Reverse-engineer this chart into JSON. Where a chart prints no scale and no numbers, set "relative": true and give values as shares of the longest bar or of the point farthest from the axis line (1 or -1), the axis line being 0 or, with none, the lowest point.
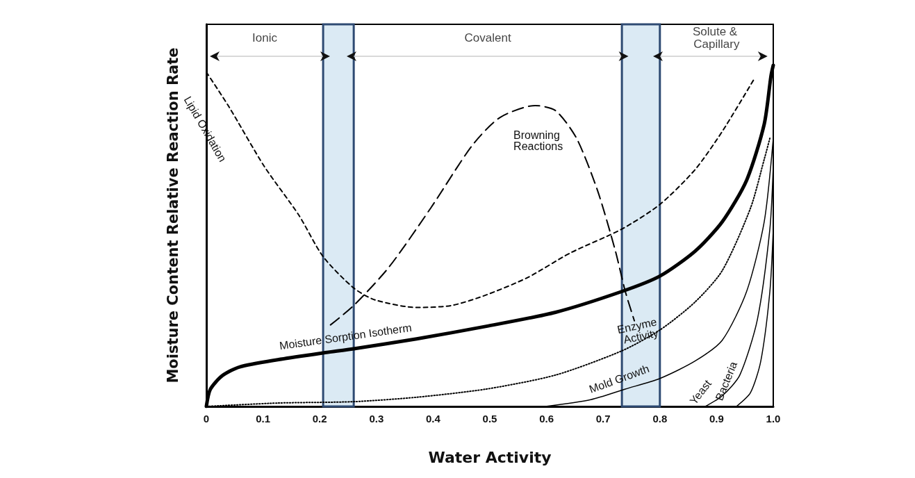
{
  "chart_data": {
    "type": "line",
    "relative": true,
    "xlabel": "Water Activity",
    "ylabel": "Moisture Content Relative Reaction Rate",
    "xlim": [
      0,
      1
    ],
    "xticks": [
      0,
      0.1,
      0.2,
      0.3,
      0.4,
      0.5,
      0.6,
      0.7,
      0.8,
      0.9,
      {
        "value": 1,
        "label": "1.0"
      }
    ],
    "grid": false,
    "legend": false,
    "marker": "none",
    "bands": [
      {
        "axis": "x",
        "from": 0.206,
        "to": 0.26,
        "color": "#dbeaf4"
      },
      {
        "axis": "x",
        "from": 0.733,
        "to": 0.8,
        "color": "#dbeaf4"
      }
    ],
    "annotations": [
      "Ionic",
      "Covalent",
      "Solute & Capillary"
    ],
    "series": [
      {
        "name": "Lipid Oxidation",
        "color": "#000000",
        "line_style": "dashed",
        "x": [
          0,
          0.04,
          0.102,
          0.163,
          0.206,
          0.26,
          0.298,
          0.371,
          0.433,
          0.494,
          0.567,
          0.641,
          0.733,
          0.8,
          0.862,
          0.91,
          0.966
        ],
        "values": [
          0.98,
          0.878,
          0.704,
          0.561,
          0.439,
          0.347,
          0.312,
          0.29,
          0.296,
          0.327,
          0.378,
          0.449,
          0.52,
          0.592,
          0.694,
          0.806,
          0.959
        ]
      },
      {
        "name": "Browning Reactions",
        "color": "#000000",
        "line_style": "dashed",
        "x": [
          0.219,
          0.26,
          0.322,
          0.396,
          0.469,
          0.518,
          0.58,
          0.616,
          0.653,
          0.69,
          0.721,
          0.739,
          0.755
        ],
        "values": [
          0.239,
          0.296,
          0.408,
          0.582,
          0.765,
          0.847,
          0.882,
          0.867,
          0.786,
          0.633,
          0.459,
          0.337,
          0.251
        ]
      },
      {
        "name": "Moisture Sorption Isotherm",
        "color": "#000000",
        "line_style": "solid",
        "x": [
          0,
          0.007,
          0.028,
          0.059,
          0.126,
          0.206,
          0.26,
          0.371,
          0.494,
          0.616,
          0.733,
          0.8,
          0.862,
          0.91,
          0.953,
          0.984,
          0.996,
          1
        ],
        "values": [
          0,
          0.05,
          0.09,
          0.116,
          0.137,
          0.157,
          0.169,
          0.198,
          0.235,
          0.276,
          0.337,
          0.382,
          0.455,
          0.541,
          0.663,
          0.827,
          0.969,
          1
        ]
      },
      {
        "name": "Enzyme Activity",
        "color": "#000000",
        "line_style": "dotted",
        "x": [
          0,
          0.126,
          0.26,
          0.371,
          0.494,
          0.616,
          0.733,
          0.8,
          0.862,
          0.91,
          0.96,
          0.984,
          0.994
        ],
        "values": [
          0,
          0.01,
          0.014,
          0.027,
          0.051,
          0.092,
          0.163,
          0.224,
          0.306,
          0.398,
          0.582,
          0.724,
          0.786
        ]
      },
      {
        "name": "Mold Growth",
        "color": "#000000",
        "line_style": "solid",
        "x": [
          0.598,
          0.678,
          0.739,
          0.8,
          0.862,
          0.91,
          0.953,
          0.984,
          1
        ],
        "values": [
          0,
          0.02,
          0.051,
          0.082,
          0.133,
          0.194,
          0.337,
          0.541,
          0.786
        ]
      },
      {
        "name": "Yeast",
        "color": "#000000",
        "line_style": "solid",
        "x": [
          0.88,
          0.91,
          0.941,
          0.972,
          0.994,
          1
        ],
        "values": [
          0,
          0.031,
          0.092,
          0.255,
          0.52,
          0.704
        ]
      },
      {
        "name": "Bacteria",
        "color": "#000000",
        "line_style": "solid",
        "x": [
          0.935,
          0.96,
          0.978,
          0.994,
          1
        ],
        "values": [
          0,
          0.041,
          0.133,
          0.337,
          0.52
        ]
      }
    ]
  }
}
